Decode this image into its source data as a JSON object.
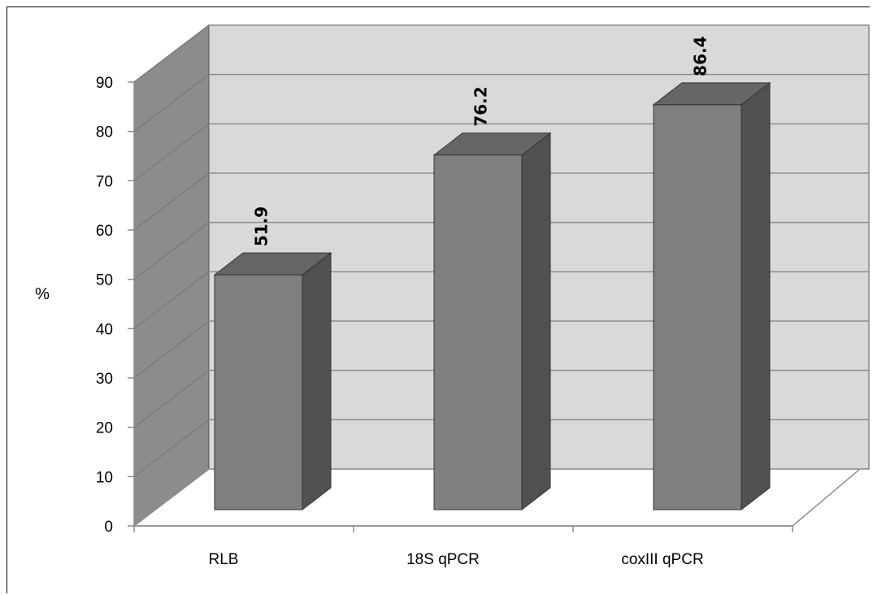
{
  "chart_data": {
    "type": "bar",
    "style": "3d-column",
    "categories": [
      "RLB",
      "18S qPCR",
      "coxIII qPCR"
    ],
    "series": [
      {
        "values": [
          51.9,
          76.2,
          86.4
        ]
      }
    ],
    "data_labels": [
      "51.9",
      "76.2",
      "86.4"
    ],
    "title": "",
    "xlabel": "",
    "ylabel": "%",
    "ylim": [
      0,
      90
    ],
    "yticks": [
      0,
      10,
      20,
      30,
      40,
      50,
      60,
      70,
      80,
      90
    ],
    "grid": true,
    "legend": "none",
    "colors": {
      "bar_front": "#7f7f7f",
      "bar_side": "#515151",
      "bar_top": "#666666",
      "back_wall": "#d9d9d9",
      "side_wall": "#8c8c8c",
      "gridline": "#8c8c8c"
    }
  }
}
